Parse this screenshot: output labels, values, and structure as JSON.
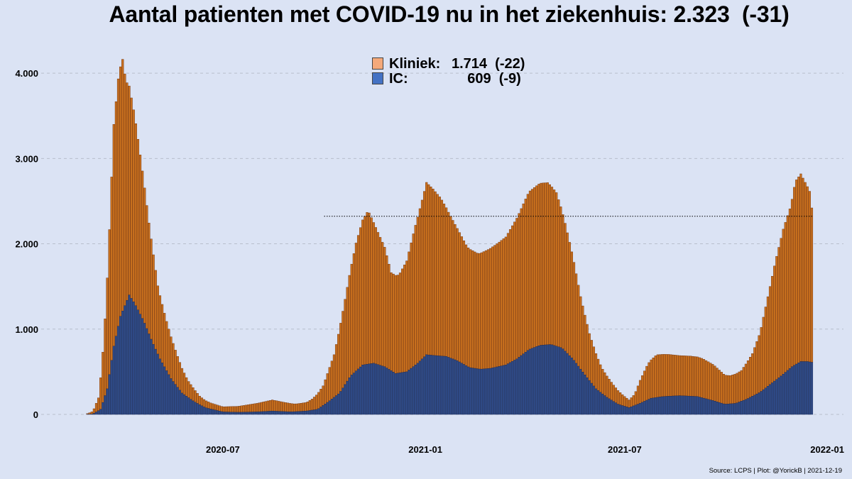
{
  "title": "Aantal patienten met COVID-19 nu in het ziekenhuis: 2.323  (-31)",
  "legend": {
    "kliniek_label": "Kliniek:",
    "kliniek_value": "1.714  (-22)",
    "ic_label": "IC:",
    "ic_value": "    609  (-9)"
  },
  "source": "Source: LCPS | Plot: @YorickB |  2021-12-19",
  "colors": {
    "background": "#dbe3f4",
    "kliniek_fill": "#c8701e",
    "kliniek_stroke": "#6a2a05",
    "ic_fill": "#2f4a86",
    "ic_stroke": "#1a2a55",
    "legend_kliniek": "#f4a97a",
    "legend_ic": "#4472c4",
    "gridline": "#b8bfcc"
  },
  "chart_data": {
    "type": "bar",
    "stacked": true,
    "x_start": "2020-02-27",
    "x_end": "2021-12-19",
    "x_tick_labels": [
      "2020-07",
      "2021-01",
      "2021-07",
      "2022-01"
    ],
    "x_tick_dates": [
      "2020-07-01",
      "2021-01-01",
      "2021-07-01",
      "2022-01-01"
    ],
    "ylim": [
      0,
      4400
    ],
    "y_ticks": [
      0,
      1000,
      2000,
      3000,
      4000
    ],
    "y_tick_labels": [
      "0",
      "1.000",
      "2.000",
      "3.000",
      "4.000"
    ],
    "grid": "horizontal dashed",
    "legend_position": "top-center",
    "reference_line": {
      "value": 2323,
      "from": "2020-10-01",
      "to": "2021-12-19",
      "style": "dotted"
    },
    "series": [
      {
        "name": "Kliniek",
        "points": [
          [
            "2020-02-27",
            0
          ],
          [
            "2020-03-05",
            30
          ],
          [
            "2020-03-10",
            150
          ],
          [
            "2020-03-15",
            700
          ],
          [
            "2020-03-20",
            1700
          ],
          [
            "2020-03-24",
            2600
          ],
          [
            "2020-03-28",
            2900
          ],
          [
            "2020-04-01",
            2950
          ],
          [
            "2020-04-04",
            2600
          ],
          [
            "2020-04-08",
            2400
          ],
          [
            "2020-04-12",
            2200
          ],
          [
            "2020-04-18",
            1800
          ],
          [
            "2020-04-25",
            1300
          ],
          [
            "2020-05-03",
            800
          ],
          [
            "2020-05-10",
            600
          ],
          [
            "2020-05-20",
            380
          ],
          [
            "2020-05-30",
            200
          ],
          [
            "2020-06-10",
            100
          ],
          [
            "2020-06-20",
            70
          ],
          [
            "2020-07-01",
            60
          ],
          [
            "2020-07-15",
            70
          ],
          [
            "2020-08-01",
            100
          ],
          [
            "2020-08-15",
            130
          ],
          [
            "2020-08-25",
            110
          ],
          [
            "2020-09-05",
            90
          ],
          [
            "2020-09-15",
            100
          ],
          [
            "2020-09-20",
            130
          ],
          [
            "2020-09-30",
            230
          ],
          [
            "2020-10-10",
            500
          ],
          [
            "2020-10-20",
            1000
          ],
          [
            "2020-10-30",
            1500
          ],
          [
            "2020-11-05",
            1700
          ],
          [
            "2020-11-10",
            1800
          ],
          [
            "2020-11-15",
            1650
          ],
          [
            "2020-11-25",
            1400
          ],
          [
            "2020-12-01",
            1150
          ],
          [
            "2020-12-08",
            1150
          ],
          [
            "2020-12-15",
            1300
          ],
          [
            "2020-12-22",
            1600
          ],
          [
            "2020-12-30",
            1900
          ],
          [
            "2021-01-02",
            2020
          ],
          [
            "2021-01-08",
            1950
          ],
          [
            "2021-01-15",
            1850
          ],
          [
            "2021-01-22",
            1700
          ],
          [
            "2021-01-30",
            1550
          ],
          [
            "2021-02-08",
            1400
          ],
          [
            "2021-02-18",
            1350
          ],
          [
            "2021-02-28",
            1400
          ],
          [
            "2021-03-08",
            1450
          ],
          [
            "2021-03-15",
            1500
          ],
          [
            "2021-03-25",
            1650
          ],
          [
            "2021-04-05",
            1850
          ],
          [
            "2021-04-15",
            1900
          ],
          [
            "2021-04-22",
            1900
          ],
          [
            "2021-04-30",
            1800
          ],
          [
            "2021-05-08",
            1500
          ],
          [
            "2021-05-15",
            1200
          ],
          [
            "2021-05-22",
            850
          ],
          [
            "2021-05-30",
            550
          ],
          [
            "2021-06-10",
            300
          ],
          [
            "2021-06-20",
            200
          ],
          [
            "2021-06-30",
            120
          ],
          [
            "2021-07-05",
            90
          ],
          [
            "2021-07-10",
            130
          ],
          [
            "2021-07-15",
            270
          ],
          [
            "2021-07-22",
            420
          ],
          [
            "2021-07-30",
            500
          ],
          [
            "2021-08-10",
            490
          ],
          [
            "2021-08-20",
            470
          ],
          [
            "2021-08-30",
            470
          ],
          [
            "2021-09-10",
            460
          ],
          [
            "2021-09-20",
            420
          ],
          [
            "2021-09-30",
            340
          ],
          [
            "2021-10-05",
            330
          ],
          [
            "2021-10-15",
            360
          ],
          [
            "2021-10-25",
            500
          ],
          [
            "2021-11-01",
            700
          ],
          [
            "2021-11-08",
            1050
          ],
          [
            "2021-11-15",
            1400
          ],
          [
            "2021-11-22",
            1700
          ],
          [
            "2021-11-29",
            1900
          ],
          [
            "2021-12-03",
            2150
          ],
          [
            "2021-12-08",
            2200
          ],
          [
            "2021-12-12",
            2100
          ],
          [
            "2021-12-16",
            2000
          ],
          [
            "2021-12-19",
            1714
          ]
        ]
      },
      {
        "name": "IC",
        "points": [
          [
            "2020-02-27",
            0
          ],
          [
            "2020-03-05",
            5
          ],
          [
            "2020-03-12",
            60
          ],
          [
            "2020-03-18",
            300
          ],
          [
            "2020-03-24",
            800
          ],
          [
            "2020-03-30",
            1150
          ],
          [
            "2020-04-07",
            1400
          ],
          [
            "2020-04-12",
            1300
          ],
          [
            "2020-04-20",
            1100
          ],
          [
            "2020-04-28",
            850
          ],
          [
            "2020-05-05",
            650
          ],
          [
            "2020-05-15",
            420
          ],
          [
            "2020-05-25",
            250
          ],
          [
            "2020-06-05",
            150
          ],
          [
            "2020-06-15",
            80
          ],
          [
            "2020-07-01",
            30
          ],
          [
            "2020-07-15",
            25
          ],
          [
            "2020-08-01",
            30
          ],
          [
            "2020-08-15",
            40
          ],
          [
            "2020-09-01",
            30
          ],
          [
            "2020-09-15",
            40
          ],
          [
            "2020-09-25",
            60
          ],
          [
            "2020-10-05",
            150
          ],
          [
            "2020-10-15",
            250
          ],
          [
            "2020-10-25",
            450
          ],
          [
            "2020-11-05",
            580
          ],
          [
            "2020-11-15",
            600
          ],
          [
            "2020-11-25",
            560
          ],
          [
            "2020-12-05",
            480
          ],
          [
            "2020-12-15",
            500
          ],
          [
            "2020-12-25",
            600
          ],
          [
            "2021-01-02",
            700
          ],
          [
            "2021-01-10",
            690
          ],
          [
            "2021-01-20",
            680
          ],
          [
            "2021-01-30",
            630
          ],
          [
            "2021-02-10",
            550
          ],
          [
            "2021-02-20",
            530
          ],
          [
            "2021-03-01",
            540
          ],
          [
            "2021-03-15",
            580
          ],
          [
            "2021-03-25",
            650
          ],
          [
            "2021-04-05",
            760
          ],
          [
            "2021-04-15",
            810
          ],
          [
            "2021-04-25",
            820
          ],
          [
            "2021-05-05",
            780
          ],
          [
            "2021-05-15",
            650
          ],
          [
            "2021-05-25",
            480
          ],
          [
            "2021-06-05",
            300
          ],
          [
            "2021-06-15",
            200
          ],
          [
            "2021-06-25",
            120
          ],
          [
            "2021-07-05",
            80
          ],
          [
            "2021-07-15",
            130
          ],
          [
            "2021-07-25",
            190
          ],
          [
            "2021-08-05",
            210
          ],
          [
            "2021-08-20",
            220
          ],
          [
            "2021-09-05",
            210
          ],
          [
            "2021-09-20",
            160
          ],
          [
            "2021-09-30",
            120
          ],
          [
            "2021-10-10",
            130
          ],
          [
            "2021-10-20",
            180
          ],
          [
            "2021-11-01",
            260
          ],
          [
            "2021-11-10",
            350
          ],
          [
            "2021-11-20",
            450
          ],
          [
            "2021-11-30",
            560
          ],
          [
            "2021-12-08",
            620
          ],
          [
            "2021-12-14",
            620
          ],
          [
            "2021-12-19",
            609
          ]
        ]
      }
    ]
  }
}
